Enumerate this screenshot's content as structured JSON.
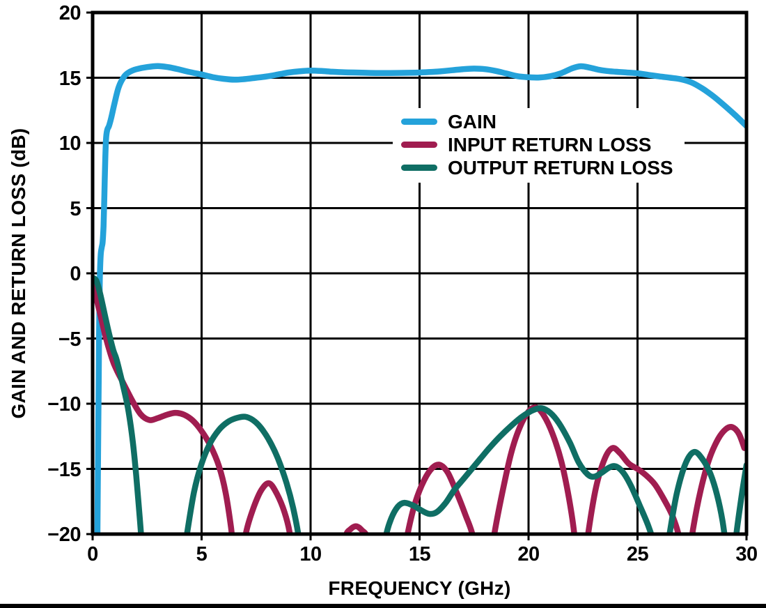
{
  "chart_data": {
    "type": "line",
    "title": "",
    "xlabel": "FREQUENCY (GHz)",
    "ylabel": "GAIN AND RETURN LOSS (dB)",
    "xlim": [
      0,
      30
    ],
    "ylim": [
      -20,
      20
    ],
    "x_ticks": [
      0,
      5,
      10,
      15,
      20,
      25,
      30
    ],
    "x_tick_labels": [
      "0",
      "5",
      "10",
      "15",
      "20",
      "25",
      "30"
    ],
    "y_ticks": [
      20,
      15,
      10,
      5,
      0,
      -5,
      -10,
      -15,
      -20
    ],
    "y_tick_labels": [
      "20",
      "15",
      "10",
      "5",
      "0",
      "−5",
      "−10",
      "−15",
      "−20"
    ],
    "grid": true,
    "grid_color": "#000000",
    "legend_position": "inside-upper-middle",
    "series": [
      {
        "name": "GAIN",
        "color": "#24A2DA",
        "points": [
          [
            0.22,
            -20
          ],
          [
            0.25,
            -14
          ],
          [
            0.28,
            -8
          ],
          [
            0.3,
            -4
          ],
          [
            0.33,
            -0.5
          ],
          [
            0.37,
            1.4
          ],
          [
            0.42,
            2.0
          ],
          [
            0.46,
            2.4
          ],
          [
            0.5,
            3.6
          ],
          [
            0.54,
            6.0
          ],
          [
            0.58,
            8.8
          ],
          [
            0.62,
            10.4
          ],
          [
            0.67,
            11.0
          ],
          [
            0.75,
            11.3
          ],
          [
            0.85,
            11.9
          ],
          [
            1.0,
            13.0
          ],
          [
            1.2,
            14.3
          ],
          [
            1.45,
            15.1
          ],
          [
            1.7,
            15.45
          ],
          [
            2.0,
            15.65
          ],
          [
            2.5,
            15.82
          ],
          [
            3.0,
            15.9
          ],
          [
            3.5,
            15.8
          ],
          [
            4.0,
            15.62
          ],
          [
            4.5,
            15.42
          ],
          [
            5.0,
            15.25
          ],
          [
            5.5,
            15.05
          ],
          [
            6.0,
            14.92
          ],
          [
            6.5,
            14.85
          ],
          [
            7.0,
            14.9
          ],
          [
            7.5,
            15.0
          ],
          [
            8.0,
            15.1
          ],
          [
            8.5,
            15.25
          ],
          [
            9.0,
            15.4
          ],
          [
            9.5,
            15.5
          ],
          [
            10.0,
            15.55
          ],
          [
            10.5,
            15.52
          ],
          [
            11.0,
            15.46
          ],
          [
            11.5,
            15.42
          ],
          [
            12.0,
            15.4
          ],
          [
            12.5,
            15.38
          ],
          [
            13.0,
            15.36
          ],
          [
            13.5,
            15.36
          ],
          [
            14.0,
            15.37
          ],
          [
            14.5,
            15.38
          ],
          [
            15.0,
            15.4
          ],
          [
            15.5,
            15.44
          ],
          [
            16.0,
            15.5
          ],
          [
            16.5,
            15.58
          ],
          [
            17.0,
            15.66
          ],
          [
            17.5,
            15.7
          ],
          [
            18.0,
            15.66
          ],
          [
            18.5,
            15.52
          ],
          [
            19.0,
            15.32
          ],
          [
            19.5,
            15.12
          ],
          [
            20.0,
            15.04
          ],
          [
            20.5,
            15.02
          ],
          [
            21.0,
            15.12
          ],
          [
            21.5,
            15.35
          ],
          [
            22.0,
            15.72
          ],
          [
            22.4,
            15.88
          ],
          [
            22.8,
            15.78
          ],
          [
            23.2,
            15.62
          ],
          [
            23.6,
            15.52
          ],
          [
            24.0,
            15.46
          ],
          [
            24.5,
            15.4
          ],
          [
            25.0,
            15.34
          ],
          [
            25.5,
            15.22
          ],
          [
            26.0,
            15.1
          ],
          [
            26.5,
            15.0
          ],
          [
            27.0,
            14.88
          ],
          [
            27.5,
            14.62
          ],
          [
            28.0,
            14.15
          ],
          [
            28.5,
            13.55
          ],
          [
            29.0,
            12.85
          ],
          [
            29.5,
            12.1
          ],
          [
            30.0,
            11.3
          ]
        ]
      },
      {
        "name": "INPUT RETURN LOSS",
        "color": "#A01D50",
        "points": [
          [
            0.02,
            -0.9
          ],
          [
            0.3,
            -2.8
          ],
          [
            0.6,
            -4.9
          ],
          [
            0.9,
            -6.6
          ],
          [
            1.1,
            -7.4
          ],
          [
            1.4,
            -8.4
          ],
          [
            1.8,
            -9.7
          ],
          [
            2.2,
            -10.8
          ],
          [
            2.6,
            -11.25
          ],
          [
            3.0,
            -11.1
          ],
          [
            3.4,
            -10.85
          ],
          [
            3.8,
            -10.7
          ],
          [
            4.2,
            -10.85
          ],
          [
            4.6,
            -11.3
          ],
          [
            5.0,
            -12.1
          ],
          [
            5.4,
            -13.2
          ],
          [
            5.8,
            -14.8
          ],
          [
            6.1,
            -16.8
          ],
          [
            6.35,
            -19.5
          ],
          [
            6.55,
            -22.5
          ],
          [
            6.8,
            -22.5
          ],
          [
            7.05,
            -19.8
          ],
          [
            7.4,
            -17.9
          ],
          [
            7.75,
            -16.6
          ],
          [
            8.1,
            -16.1
          ],
          [
            8.45,
            -16.9
          ],
          [
            8.8,
            -18.3
          ],
          [
            9.05,
            -20
          ],
          [
            9.2,
            -22.5
          ],
          [
            11.35,
            -22.5
          ],
          [
            11.6,
            -20.2
          ],
          [
            11.85,
            -19.6
          ],
          [
            12.1,
            -19.4
          ],
          [
            12.35,
            -19.7
          ],
          [
            12.6,
            -20.3
          ],
          [
            12.75,
            -22.5
          ],
          [
            14.2,
            -22.5
          ],
          [
            14.45,
            -20
          ],
          [
            14.8,
            -17.6
          ],
          [
            15.2,
            -15.9
          ],
          [
            15.6,
            -14.9
          ],
          [
            15.95,
            -14.7
          ],
          [
            16.3,
            -15.3
          ],
          [
            16.7,
            -16.8
          ],
          [
            17.1,
            -18.5
          ],
          [
            17.45,
            -20.2
          ],
          [
            17.6,
            -22.5
          ],
          [
            18.2,
            -22.5
          ],
          [
            18.45,
            -19.8
          ],
          [
            18.8,
            -16.8
          ],
          [
            19.2,
            -13.8
          ],
          [
            19.6,
            -11.8
          ],
          [
            20.0,
            -10.6
          ],
          [
            20.35,
            -10.3
          ],
          [
            20.7,
            -10.9
          ],
          [
            21.1,
            -12.3
          ],
          [
            21.5,
            -14.4
          ],
          [
            21.85,
            -17.2
          ],
          [
            22.1,
            -20
          ],
          [
            22.2,
            -22.5
          ],
          [
            22.55,
            -22.5
          ],
          [
            22.75,
            -19.8
          ],
          [
            23.1,
            -16.4
          ],
          [
            23.5,
            -14.2
          ],
          [
            23.85,
            -13.4
          ],
          [
            24.2,
            -13.8
          ],
          [
            24.6,
            -14.6
          ],
          [
            25.0,
            -15.0
          ],
          [
            25.4,
            -15.5
          ],
          [
            25.8,
            -16.2
          ],
          [
            26.2,
            -17.3
          ],
          [
            26.6,
            -18.6
          ],
          [
            26.9,
            -20.2
          ],
          [
            27.05,
            -22.5
          ],
          [
            27.3,
            -22.5
          ],
          [
            27.55,
            -19.6
          ],
          [
            27.9,
            -16.6
          ],
          [
            28.3,
            -14.2
          ],
          [
            28.7,
            -12.7
          ],
          [
            29.05,
            -11.95
          ],
          [
            29.35,
            -11.8
          ],
          [
            29.65,
            -12.3
          ],
          [
            29.9,
            -13.4
          ]
        ]
      },
      {
        "name": "OUTPUT RETURN LOSS",
        "color": "#0F6E64",
        "points": [
          [
            0.02,
            -0.35
          ],
          [
            0.18,
            -0.6
          ],
          [
            0.35,
            -1.6
          ],
          [
            0.55,
            -3.1
          ],
          [
            0.75,
            -4.6
          ],
          [
            0.95,
            -5.9
          ],
          [
            1.08,
            -6.5
          ],
          [
            1.25,
            -7.6
          ],
          [
            1.45,
            -9.0
          ],
          [
            1.65,
            -10.6
          ],
          [
            1.85,
            -13.0
          ],
          [
            2.0,
            -15.5
          ],
          [
            2.15,
            -18.5
          ],
          [
            2.3,
            -21.5
          ],
          [
            2.45,
            -23
          ],
          [
            4.05,
            -23
          ],
          [
            4.3,
            -20.3
          ],
          [
            4.65,
            -16.8
          ],
          [
            5.0,
            -14.6
          ],
          [
            5.4,
            -13.0
          ],
          [
            5.8,
            -12.0
          ],
          [
            6.2,
            -11.4
          ],
          [
            6.6,
            -11.1
          ],
          [
            7.0,
            -11.0
          ],
          [
            7.35,
            -11.25
          ],
          [
            7.7,
            -11.8
          ],
          [
            8.1,
            -12.8
          ],
          [
            8.5,
            -14.2
          ],
          [
            8.9,
            -16.1
          ],
          [
            9.2,
            -18.0
          ],
          [
            9.45,
            -20.2
          ],
          [
            9.6,
            -23
          ],
          [
            13.2,
            -23
          ],
          [
            13.45,
            -20.2
          ],
          [
            13.7,
            -18.8
          ],
          [
            14.0,
            -17.9
          ],
          [
            14.3,
            -17.6
          ],
          [
            14.7,
            -17.8
          ],
          [
            15.1,
            -18.2
          ],
          [
            15.45,
            -18.45
          ],
          [
            15.8,
            -18.3
          ],
          [
            16.2,
            -17.6
          ],
          [
            16.6,
            -16.6
          ],
          [
            17.0,
            -15.8
          ],
          [
            17.4,
            -15.0
          ],
          [
            17.8,
            -14.2
          ],
          [
            18.2,
            -13.4
          ],
          [
            18.7,
            -12.5
          ],
          [
            19.2,
            -11.7
          ],
          [
            19.7,
            -11.0
          ],
          [
            20.2,
            -10.5
          ],
          [
            20.6,
            -10.35
          ],
          [
            21.0,
            -10.7
          ],
          [
            21.4,
            -11.5
          ],
          [
            21.9,
            -13.0
          ],
          [
            22.3,
            -14.5
          ],
          [
            22.7,
            -15.4
          ],
          [
            23.0,
            -15.6
          ],
          [
            23.35,
            -15.3
          ],
          [
            23.7,
            -14.9
          ],
          [
            24.0,
            -14.8
          ],
          [
            24.35,
            -15.3
          ],
          [
            24.7,
            -16.3
          ],
          [
            25.1,
            -17.8
          ],
          [
            25.5,
            -19.4
          ],
          [
            25.75,
            -20.8
          ],
          [
            25.9,
            -23
          ],
          [
            26.2,
            -23
          ],
          [
            26.45,
            -20.2
          ],
          [
            26.8,
            -16.9
          ],
          [
            27.2,
            -14.6
          ],
          [
            27.6,
            -13.7
          ],
          [
            28.0,
            -14.3
          ],
          [
            28.35,
            -15.4
          ],
          [
            28.65,
            -17.0
          ],
          [
            28.9,
            -19.0
          ],
          [
            29.1,
            -21.5
          ],
          [
            29.2,
            -23
          ],
          [
            29.35,
            -23
          ],
          [
            29.55,
            -19.8
          ],
          [
            29.8,
            -16.8
          ],
          [
            30.0,
            -14.7
          ]
        ]
      }
    ]
  },
  "colors": {
    "background": "#FFFFFF",
    "axis": "#000000",
    "bottom_rule": "#000000"
  }
}
